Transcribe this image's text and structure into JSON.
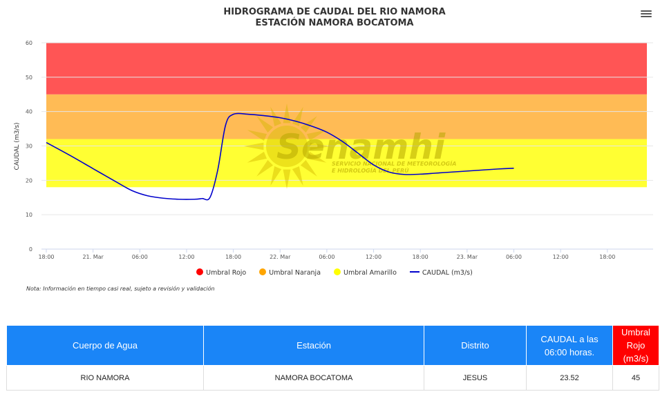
{
  "chart": {
    "title_line1": "HIDROGRAMA DE CAUDAL DEL RIO NAMORA",
    "title_line2": "ESTACIÓN NAMORA BOCATOMA",
    "note": "Nota: Información en tiempo casi real, sujeto a revisión y validación"
  },
  "watermark": {
    "brand": "Senamhi",
    "line1": "SERVICIO NACIONAL DE METEOROLOGÍA",
    "line2": "E HIDROLOGÍA DEL PERÚ"
  },
  "legend": [
    {
      "label": "Umbral Rojo",
      "color": "#ff0000"
    },
    {
      "label": "Umbral Naranja",
      "color": "#ffa500"
    },
    {
      "label": "Umbral Amarillo",
      "color": "#ffff00"
    },
    {
      "label": "CAUDAL (m3/s)",
      "color": "#0000cc"
    }
  ],
  "chart_data": {
    "type": "line",
    "ylabel": "CAUDAL (m3/s)",
    "ylim": [
      0,
      60
    ],
    "yticks": [
      0,
      10,
      20,
      30,
      40,
      50,
      60
    ],
    "xlim_hours": [
      0,
      66
    ],
    "xticks": [
      {
        "h": 0,
        "label": "18:00"
      },
      {
        "h": 6,
        "label": "21. Mar"
      },
      {
        "h": 12,
        "label": "06:00"
      },
      {
        "h": 18,
        "label": "12:00"
      },
      {
        "h": 24,
        "label": "18:00"
      },
      {
        "h": 30,
        "label": "22. Mar"
      },
      {
        "h": 36,
        "label": "06:00"
      },
      {
        "h": 42,
        "label": "12:00"
      },
      {
        "h": 48,
        "label": "18:00"
      },
      {
        "h": 54,
        "label": "23. Mar"
      },
      {
        "h": 60,
        "label": "06:00"
      },
      {
        "h": 66,
        "label": "12:00"
      },
      {
        "h": 72,
        "label": "18:00"
      }
    ],
    "bands": [
      {
        "name": "Umbral Amarillo",
        "from": 18,
        "to": 32,
        "color": "#ffff33"
      },
      {
        "name": "Umbral Naranja",
        "from": 32,
        "to": 45,
        "color": "#ffbb55"
      },
      {
        "name": "Umbral Rojo",
        "from": 45,
        "to": 60,
        "color": "#ff5555"
      }
    ],
    "series": [
      {
        "name": "CAUDAL (m3/s)",
        "color": "#0000cc",
        "x_hours": [
          0,
          3,
          6,
          9,
          11,
          13,
          15,
          17,
          19,
          20,
          21,
          22,
          23,
          24,
          26,
          28,
          30,
          32,
          34,
          36,
          38,
          40,
          42,
          44,
          46,
          48,
          50,
          52,
          54,
          56,
          58,
          60
        ],
        "values": [
          31,
          27.3,
          23.4,
          19.5,
          17,
          15.5,
          14.8,
          14.5,
          14.5,
          14.7,
          15,
          23,
          36,
          39.2,
          39.2,
          38.8,
          38.2,
          37.2,
          35.8,
          34,
          31.3,
          27.9,
          24.5,
          22.4,
          21.7,
          21.8,
          22.1,
          22.4,
          22.7,
          23,
          23.3,
          23.52
        ]
      }
    ]
  },
  "table": {
    "headers": [
      "Cuerpo de Agua",
      "Estación",
      "Distrito",
      "CAUDAL a las 06:00 horas.",
      "Umbral Rojo (m3/s)"
    ],
    "row": [
      "RIO NAMORA",
      "NAMORA BOCATOMA",
      "JESUS",
      "23.52",
      "45"
    ]
  }
}
